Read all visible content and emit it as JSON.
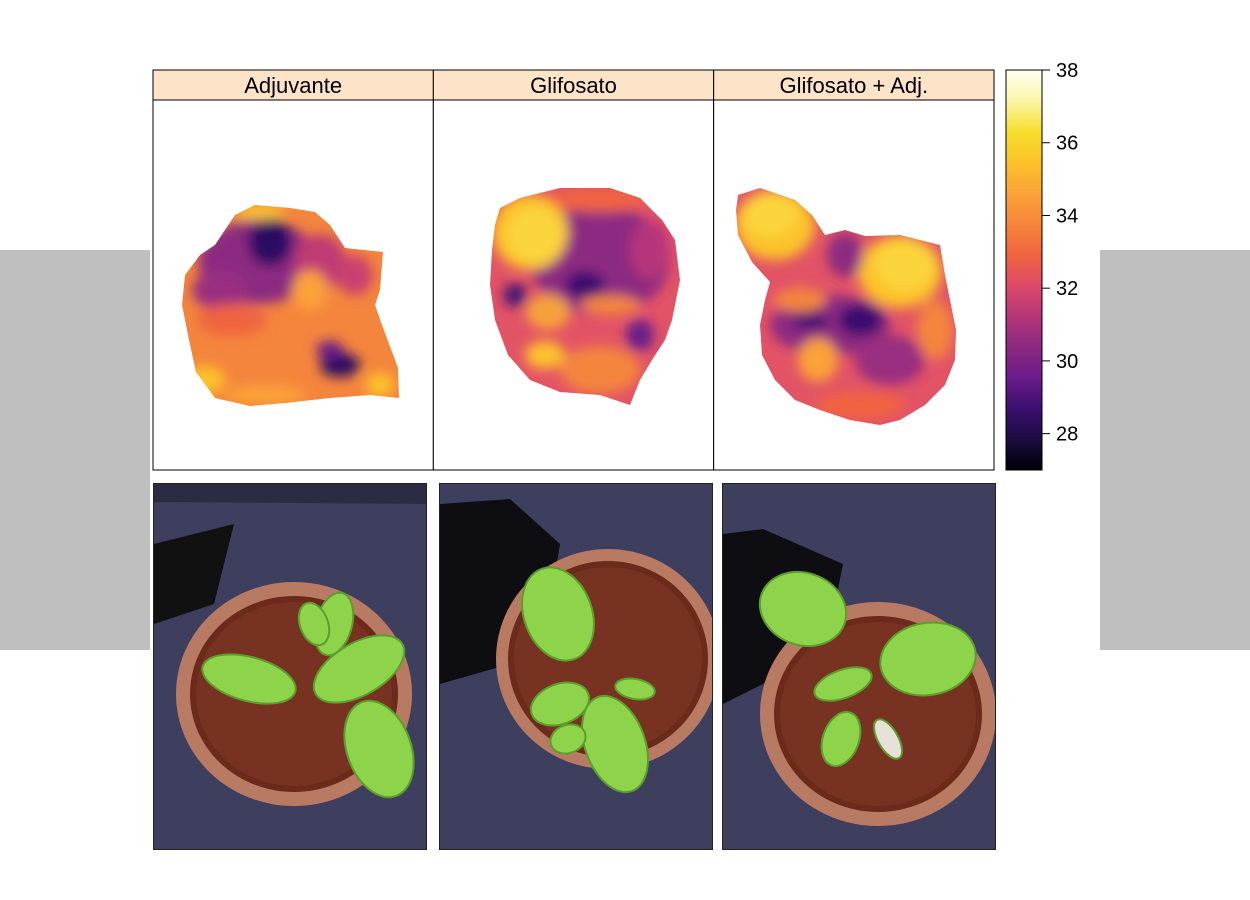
{
  "chart_data": {
    "type": "heatmap",
    "title": "",
    "panels": [
      {
        "label": "Adjuvante"
      },
      {
        "label": "Glifosato"
      },
      {
        "label": "Glifosato + Adj."
      }
    ],
    "colorbar": {
      "min": 27,
      "max": 38,
      "ticks": [
        28,
        30,
        32,
        34,
        36,
        38
      ],
      "palette": [
        "#000004",
        "#1b0c41",
        "#3b0f70",
        "#6a1b8a",
        "#8c2981",
        "#b5367a",
        "#de4968",
        "#f0643f",
        "#f7853a",
        "#fba238",
        "#fcc229",
        "#f6de2c",
        "#fcf6a8",
        "#fffef0"
      ]
    },
    "colors": {
      "strip_background": "#fde3c8",
      "gray_band": "#bfbfbf"
    }
  },
  "photos": [
    {
      "name": "adjuvante-photo",
      "panel": "Adjuvante"
    },
    {
      "name": "glifosato-photo",
      "panel": "Glifosato"
    },
    {
      "name": "glifosato-adj-photo",
      "panel": "Glifosato + Adj."
    }
  ]
}
